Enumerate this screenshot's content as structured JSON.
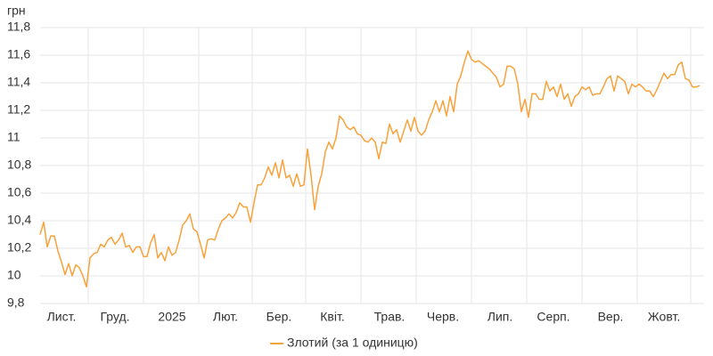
{
  "chart_data": {
    "type": "line",
    "y_label": "грн",
    "categories": [
      null,
      null,
      null,
      null,
      null,
      null,
      "Лист.",
      null,
      null,
      null,
      null,
      null,
      null,
      null,
      null,
      null,
      null,
      null,
      null,
      null,
      null,
      "Груд.",
      null,
      null,
      null,
      null,
      null,
      null,
      null,
      null,
      null,
      null,
      null,
      null,
      null,
      null,
      null,
      "2025",
      null,
      null,
      null,
      null,
      null,
      null,
      null,
      null,
      null,
      null,
      null,
      null,
      null,
      null,
      "Лют.",
      null,
      null,
      null,
      null,
      null,
      null,
      null,
      null,
      null,
      null,
      null,
      null,
      null,
      null,
      "Бер.",
      null,
      null,
      null,
      null,
      null,
      null,
      null,
      null,
      null,
      null,
      null,
      null,
      null,
      null,
      "Квіт.",
      null,
      null,
      null,
      null,
      null,
      null,
      null,
      null,
      null,
      null,
      null,
      null,
      null,
      null,
      null,
      "Трав.",
      null,
      null,
      null,
      null,
      null,
      null,
      null,
      null,
      null,
      null,
      null,
      null,
      null,
      null,
      "Черв.",
      null,
      null,
      null,
      null,
      null,
      null,
      null,
      null,
      null,
      null,
      null,
      null,
      null,
      null,
      null,
      "Лип.",
      null,
      null,
      null,
      null,
      null,
      null,
      null,
      null,
      null,
      null,
      null,
      null,
      null,
      null,
      "Серп.",
      null,
      null,
      null,
      null,
      null,
      null,
      null,
      null,
      null,
      null,
      null,
      null,
      null,
      null,
      null,
      "Вер.",
      null,
      null,
      null,
      null,
      null,
      null,
      null,
      null,
      null,
      null,
      null,
      null,
      null,
      null,
      "Жовт.",
      null,
      null,
      null,
      null,
      null,
      null,
      null,
      null,
      null,
      null
    ],
    "series": [
      {
        "name": "Злотий (за 1 одиницю)",
        "color": "#f7a23b",
        "values": [
          10.3,
          10.39,
          10.21,
          10.29,
          10.29,
          10.18,
          10.1,
          10.01,
          10.09,
          10.0,
          10.08,
          10.06,
          10.0,
          9.92,
          10.13,
          10.16,
          10.17,
          10.23,
          10.21,
          10.26,
          10.28,
          10.23,
          10.26,
          10.31,
          10.21,
          10.22,
          10.17,
          10.21,
          10.21,
          10.14,
          10.14,
          10.24,
          10.3,
          10.13,
          10.17,
          10.11,
          10.21,
          10.15,
          10.17,
          10.26,
          10.37,
          10.4,
          10.45,
          10.34,
          10.32,
          10.23,
          10.13,
          10.26,
          10.27,
          10.26,
          10.34,
          10.4,
          10.42,
          10.45,
          10.42,
          10.46,
          10.53,
          10.5,
          10.5,
          10.39,
          10.53,
          10.66,
          10.66,
          10.71,
          10.79,
          10.73,
          10.82,
          10.71,
          10.84,
          10.71,
          10.73,
          10.65,
          10.74,
          10.65,
          10.66,
          10.92,
          10.73,
          10.48,
          10.65,
          10.74,
          10.9,
          10.97,
          10.92,
          11.0,
          11.16,
          11.13,
          11.08,
          11.06,
          11.08,
          11.03,
          11.02,
          10.98,
          10.97,
          11.0,
          10.97,
          10.85,
          10.97,
          10.96,
          11.1,
          11.03,
          11.06,
          10.97,
          11.05,
          11.13,
          11.05,
          11.15,
          11.05,
          11.02,
          11.05,
          11.13,
          11.19,
          11.27,
          11.19,
          11.27,
          11.16,
          11.3,
          11.19,
          11.39,
          11.45,
          11.55,
          11.63,
          11.57,
          11.55,
          11.56,
          11.54,
          11.52,
          11.5,
          11.47,
          11.44,
          11.37,
          11.39,
          11.52,
          11.52,
          11.5,
          11.39,
          11.19,
          11.28,
          11.15,
          11.32,
          11.32,
          11.28,
          11.28,
          11.41,
          11.34,
          11.37,
          11.3,
          11.39,
          11.28,
          11.32,
          11.23,
          11.3,
          11.32,
          11.37,
          11.35,
          11.37,
          11.31,
          11.32,
          11.32,
          11.37,
          11.43,
          11.45,
          11.34,
          11.45,
          11.43,
          11.41,
          11.32,
          11.39,
          11.37,
          11.39,
          11.37,
          11.34,
          11.34,
          11.3,
          11.35,
          11.41,
          11.47,
          11.43,
          11.46,
          11.46,
          11.53,
          11.55,
          11.43,
          11.42,
          11.37,
          11.37,
          11.38
        ]
      }
    ],
    "ylim": [
      9.8,
      11.8
    ],
    "yticks": [
      {
        "value": 9.8,
        "label": "9,8"
      },
      10,
      {
        "value": 10.2,
        "label": "10,2"
      },
      {
        "value": 10.4,
        "label": "10,4"
      },
      {
        "value": 10.6,
        "label": "10,6"
      },
      {
        "value": 10.8,
        "label": "10,8"
      },
      11,
      {
        "value": 11.2,
        "label": "11,2"
      },
      {
        "value": 11.4,
        "label": "11,4"
      },
      {
        "value": 11.6,
        "label": "11,6"
      },
      {
        "value": 11.8,
        "label": "11,8"
      }
    ],
    "grid": true,
    "legend": "bottom"
  }
}
